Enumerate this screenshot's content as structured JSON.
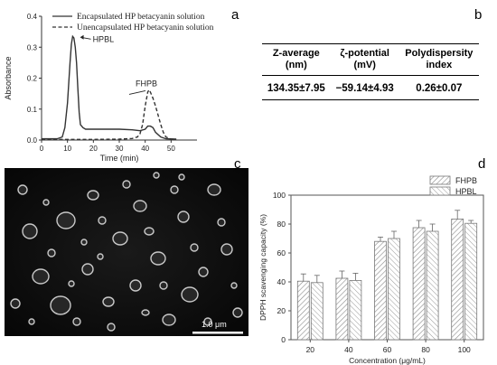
{
  "panel_labels": {
    "a": "a",
    "b": "b",
    "c": "c",
    "d": "d"
  },
  "table": {
    "headers": [
      "Z-average\n(nm)",
      "ζ-potential\n(mV)",
      "Polydispersity\nindex"
    ],
    "values": [
      "134.35±7.95",
      "−59.14±4.93",
      "0.26±0.07"
    ]
  },
  "micrograph": {
    "scale_bar_label": "1.0 μm"
  },
  "chart_data": [
    {
      "type": "line",
      "xlabel": "Time (min)",
      "ylabel": "Absorbance",
      "xlim": [
        0,
        60
      ],
      "ylim": [
        0,
        0.4
      ],
      "xticks": [
        0,
        10,
        20,
        30,
        40,
        50
      ],
      "yticks": [
        0.0,
        0.1,
        0.2,
        0.3,
        0.4
      ],
      "legend": "top-right",
      "annotations": [
        {
          "text": "HPBL",
          "x": 14.5,
          "y": 0.335
        },
        {
          "text": "FHPB",
          "x": 41.5,
          "y": 0.165
        }
      ],
      "series": [
        {
          "name": "Encapsulated HP betacyanin solution",
          "style": "solid",
          "x": [
            0,
            6,
            8,
            9,
            10,
            11,
            11.5,
            12,
            12.5,
            13,
            13.5,
            14,
            14.5,
            15,
            16,
            17,
            20,
            25,
            30,
            35,
            38,
            40,
            41,
            42,
            43,
            44,
            46,
            48,
            52
          ],
          "y": [
            0.004,
            0.004,
            0.01,
            0.04,
            0.12,
            0.25,
            0.31,
            0.335,
            0.33,
            0.3,
            0.25,
            0.17,
            0.09,
            0.05,
            0.04,
            0.035,
            0.035,
            0.035,
            0.035,
            0.033,
            0.03,
            0.035,
            0.045,
            0.045,
            0.04,
            0.025,
            0.01,
            0.004,
            0.003
          ]
        },
        {
          "name": "Unencapsulated HP betacyanin solution",
          "style": "dashed",
          "x": [
            0,
            20,
            30,
            35,
            37,
            38,
            39,
            40,
            41,
            41.5,
            42,
            43,
            44,
            45,
            46,
            47,
            48,
            50,
            52
          ],
          "y": [
            0.002,
            0.002,
            0.003,
            0.005,
            0.01,
            0.02,
            0.05,
            0.11,
            0.155,
            0.162,
            0.155,
            0.135,
            0.11,
            0.08,
            0.05,
            0.025,
            0.01,
            0.003,
            0.002
          ]
        }
      ]
    },
    {
      "type": "bar",
      "xlabel": "Concentration (μg/mL)",
      "ylabel": "DPPH scavenging capacity (%)",
      "ylim": [
        0,
        100
      ],
      "yticks": [
        0,
        20,
        40,
        60,
        80,
        100
      ],
      "legend": "top-right",
      "categories": [
        "20",
        "40",
        "60",
        "80",
        "100"
      ],
      "series": [
        {
          "name": "FHPB",
          "values": [
            40.5,
            42.5,
            68,
            77.5,
            83.5
          ],
          "errors": [
            5,
            5,
            3,
            5,
            6
          ]
        },
        {
          "name": "HPBL",
          "values": [
            39.5,
            41,
            70,
            75,
            80.5
          ],
          "errors": [
            5,
            5,
            5,
            5,
            2
          ]
        }
      ]
    }
  ]
}
